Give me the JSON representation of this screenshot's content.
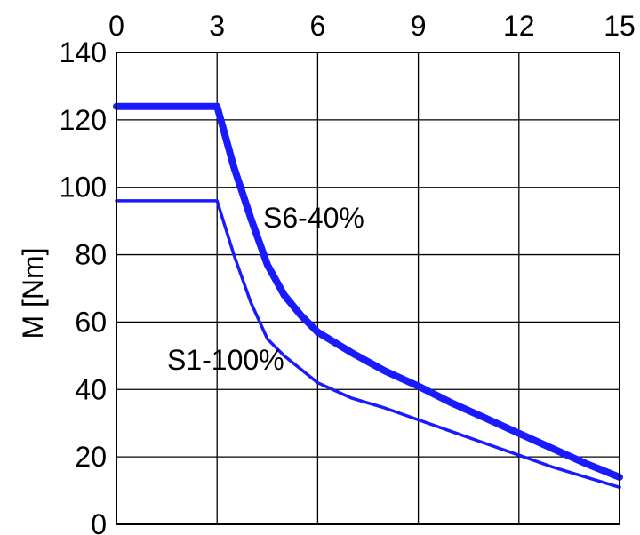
{
  "chart_data": {
    "type": "line",
    "title": "",
    "xlabel": "",
    "ylabel": "M [Nm]",
    "xlim": [
      0,
      15
    ],
    "ylim": [
      0,
      140
    ],
    "x_ticks": [
      "0",
      "3",
      "6",
      "9",
      "12",
      "15"
    ],
    "y_ticks": [
      "0",
      "20",
      "40",
      "60",
      "80",
      "100",
      "120",
      "140"
    ],
    "x_axis_position": "top",
    "grid": true,
    "line_color": "#1a1aff",
    "series": [
      {
        "name": "S6-40%",
        "x": [
          0,
          3,
          3.5,
          4,
          4.5,
          5,
          5.5,
          6,
          7,
          8,
          9,
          10,
          11,
          12,
          13,
          14,
          15
        ],
        "y": [
          124,
          124,
          106,
          91,
          77,
          68,
          62,
          57,
          51,
          45.5,
          41,
          36,
          31.5,
          27,
          22.5,
          18,
          14
        ]
      },
      {
        "name": "S1-100%",
        "x": [
          0,
          3,
          3.5,
          4,
          4.5,
          5,
          5.5,
          6,
          7,
          8,
          9,
          10,
          11,
          12,
          13,
          14,
          15
        ],
        "y": [
          96,
          96,
          80,
          66,
          55,
          50,
          46,
          42,
          37.5,
          34.5,
          31,
          27.5,
          24,
          20.5,
          17,
          14,
          11
        ]
      }
    ]
  }
}
